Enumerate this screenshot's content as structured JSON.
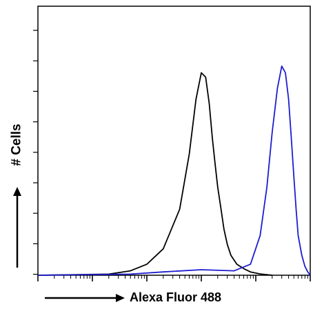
{
  "chart_data": {
    "type": "line",
    "xscale": "log",
    "xlabel": "Alexa Fluor 488",
    "ylabel": "# Cells",
    "xlim": [
      1,
      100000
    ],
    "ylim": [
      0,
      1.0
    ],
    "grid": false,
    "legend": "none",
    "series": [
      {
        "color": "#000000",
        "x": [
          1,
          20,
          50,
          100,
          200,
          400,
          600,
          800,
          1000,
          1200,
          1400,
          1600,
          1800,
          2000,
          2300,
          2600,
          3000,
          3500,
          4500,
          6000,
          8000,
          12000,
          20000
        ],
        "y": [
          0.0,
          0.005,
          0.02,
          0.05,
          0.12,
          0.3,
          0.55,
          0.8,
          0.92,
          0.9,
          0.78,
          0.62,
          0.5,
          0.4,
          0.3,
          0.21,
          0.14,
          0.09,
          0.05,
          0.03,
          0.015,
          0.006,
          0.0
        ]
      },
      {
        "color": "#1c1cd0",
        "x": [
          1,
          50,
          200,
          1000,
          4000,
          8000,
          12000,
          16000,
          20000,
          25000,
          30000,
          35000,
          40000,
          45000,
          50000,
          55000,
          60000,
          70000,
          80000,
          90000,
          100000
        ],
        "y": [
          0.0,
          0.005,
          0.015,
          0.025,
          0.02,
          0.05,
          0.18,
          0.4,
          0.65,
          0.85,
          0.95,
          0.92,
          0.8,
          0.62,
          0.45,
          0.3,
          0.18,
          0.09,
          0.04,
          0.015,
          0.0
        ]
      }
    ]
  }
}
